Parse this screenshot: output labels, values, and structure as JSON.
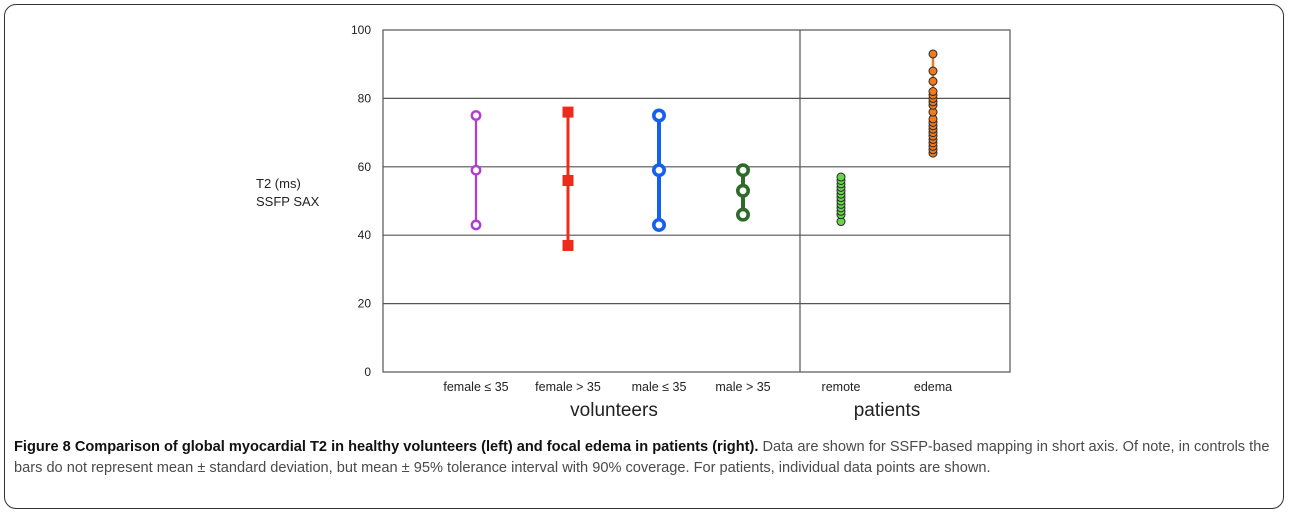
{
  "chart_data": {
    "type": "scatter",
    "ylabel": [
      "T2 (ms)",
      "SSFP SAX"
    ],
    "ylim": [
      0,
      100
    ],
    "yticks": [
      "0",
      "20",
      "40",
      "60",
      "80",
      "100"
    ],
    "grid": true,
    "groups": [
      {
        "label": "volunteers",
        "categories": [
          "female ≤ 35",
          "female > 35",
          "male ≤ 35",
          "male > 35"
        ]
      },
      {
        "label": "patients",
        "categories": [
          "remote",
          "edema"
        ]
      }
    ],
    "interval_series": [
      {
        "category": "female ≤ 35",
        "low": 43,
        "mean": 59,
        "high": 75,
        "color": "#b23bd6",
        "marker": "ring",
        "weight": "thin"
      },
      {
        "category": "female > 35",
        "low": 37,
        "mean": 56,
        "high": 76,
        "color": "#ee2b1a",
        "marker": "square",
        "weight": "medium"
      },
      {
        "category": "male ≤ 35",
        "low": 43,
        "mean": 59,
        "high": 75,
        "color": "#1660f0",
        "marker": "ring",
        "weight": "thick"
      },
      {
        "category": "male > 35",
        "low": 46,
        "mean": 53,
        "high": 59,
        "color": "#2e6b2a",
        "marker": "ring",
        "weight": "thick"
      }
    ],
    "point_series": [
      {
        "category": "remote",
        "color": "#66d64a",
        "values": [
          44,
          46,
          47,
          48,
          49,
          50,
          51,
          52,
          53,
          54,
          55,
          56,
          57
        ]
      },
      {
        "category": "edema",
        "color": "#f07b1e",
        "values": [
          64,
          65,
          66,
          67,
          68,
          69,
          70,
          71,
          72,
          73,
          74,
          76,
          78,
          79,
          80,
          81,
          82,
          85,
          88,
          93
        ]
      }
    ]
  },
  "caption": {
    "bold": "Figure 8 Comparison of global myocardial T2 in healthy volunteers (left) and focal edema in patients (right).",
    "text": " Data are shown for SSFP-based mapping in short axis. Of note, in controls the bars do not represent mean ± standard deviation, but mean ± 95% tolerance interval with 90% coverage. For patients, individual data points are shown."
  }
}
